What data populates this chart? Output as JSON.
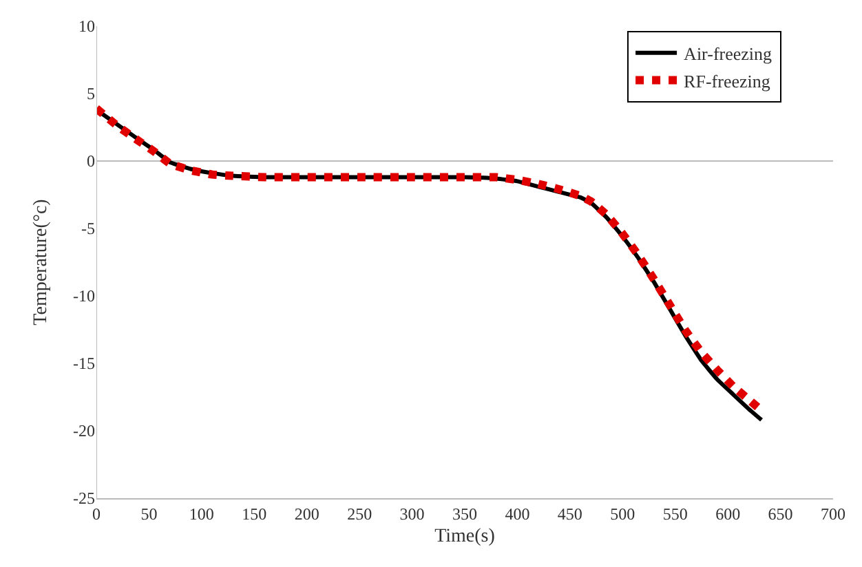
{
  "chart_data": {
    "type": "line",
    "xlabel": "Time(s)",
    "ylabel": "Temperature(°c)",
    "xlim": [
      0,
      700
    ],
    "ylim": [
      -25,
      10
    ],
    "xticks": [
      0,
      50,
      100,
      150,
      200,
      250,
      300,
      350,
      400,
      450,
      500,
      550,
      600,
      650,
      700
    ],
    "yticks": [
      -25,
      -20,
      -15,
      -10,
      -5,
      0,
      5,
      10
    ],
    "legend": "top right",
    "ref_lines": [
      {
        "axis": "y",
        "value": 0,
        "color": "#bbbbbb"
      }
    ],
    "x": [
      0,
      20,
      40,
      55,
      70,
      90,
      110,
      130,
      160,
      200,
      250,
      300,
      350,
      380,
      400,
      420,
      440,
      460,
      470,
      485,
      500,
      515,
      530,
      545,
      560,
      575,
      590,
      605,
      620,
      632
    ],
    "series": [
      {
        "name": "Air-freezing",
        "color": "#000000",
        "line_style": "solid",
        "values": [
          3.8,
          2.7,
          1.6,
          0.8,
          -0.1,
          -0.6,
          -0.9,
          -1.1,
          -1.2,
          -1.2,
          -1.2,
          -1.2,
          -1.2,
          -1.3,
          -1.5,
          -1.9,
          -2.3,
          -2.7,
          -3.1,
          -4.2,
          -5.6,
          -7.2,
          -9.0,
          -11.0,
          -13.0,
          -14.8,
          -16.2,
          -17.3,
          -18.4,
          -19.2
        ]
      },
      {
        "name": "RF-freezing",
        "color": "#e00000",
        "line_style": "dotted",
        "values": [
          3.9,
          2.6,
          1.5,
          0.7,
          -0.2,
          -0.7,
          -1.0,
          -1.1,
          -1.2,
          -1.2,
          -1.2,
          -1.2,
          -1.2,
          -1.2,
          -1.4,
          -1.7,
          -2.1,
          -2.6,
          -3.0,
          -4.0,
          -5.4,
          -7.0,
          -8.8,
          -10.7,
          -12.6,
          -14.2,
          -15.5,
          -16.7,
          -17.7,
          -18.5
        ]
      }
    ]
  }
}
